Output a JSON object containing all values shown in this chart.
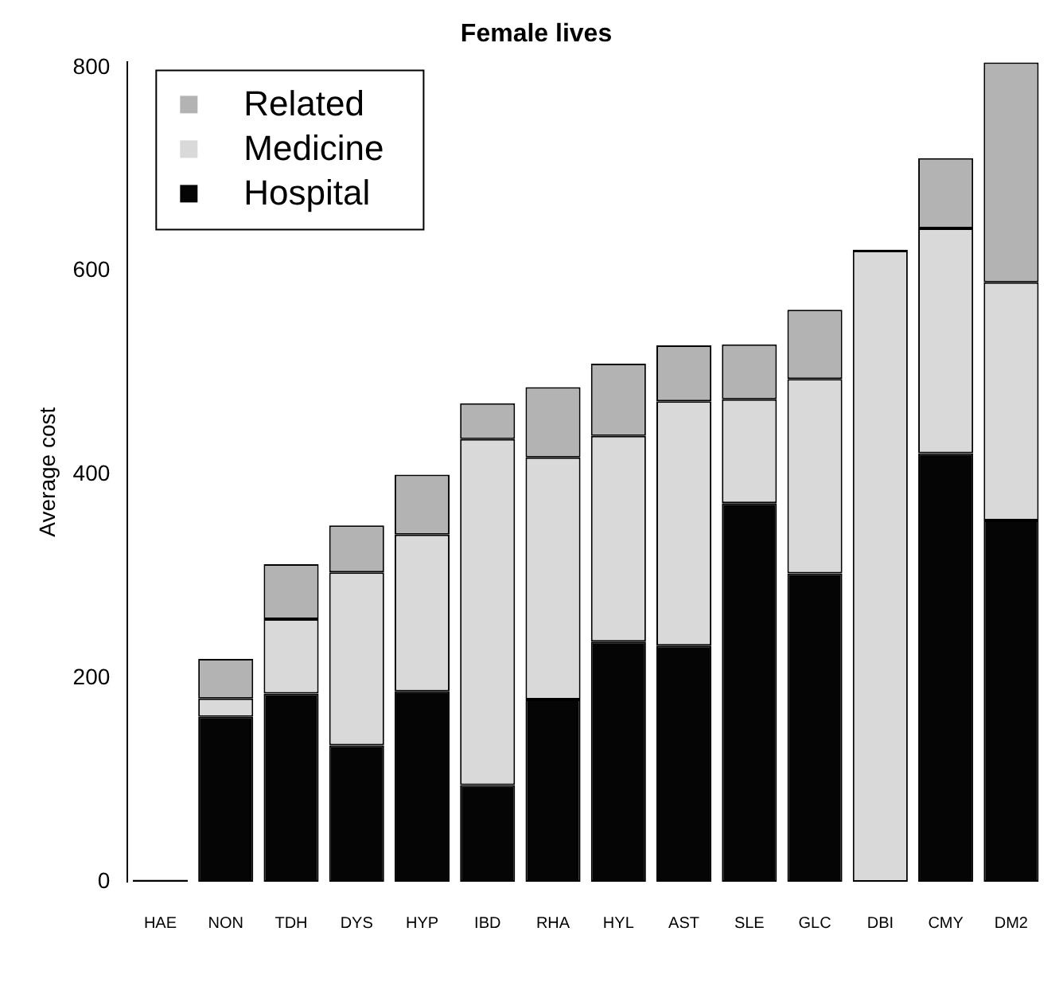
{
  "chart_data": {
    "type": "bar",
    "title": "Female lives",
    "ylabel": "Average cost",
    "stacked": true,
    "categories": [
      "HAE",
      "NON",
      "TDH",
      "DYS",
      "HYP",
      "IBD",
      "RHA",
      "HYL",
      "AST",
      "SLE",
      "GLC",
      "DBI",
      "CMY",
      "DM2"
    ],
    "series": [
      {
        "name": "Hospital",
        "color": "#050505",
        "values": [
          2,
          162,
          185,
          134,
          187,
          95,
          179,
          236,
          232,
          372,
          303,
          0,
          421,
          355
        ]
      },
      {
        "name": "Medicine",
        "color": "#d9d9d9",
        "values": [
          0,
          18,
          73,
          170,
          154,
          340,
          238,
          202,
          240,
          102,
          191,
          620,
          221,
          234
        ]
      },
      {
        "name": "Related",
        "color": "#b3b3b3",
        "values": [
          0,
          39,
          54,
          46,
          59,
          35,
          69,
          71,
          55,
          54,
          68,
          1,
          69,
          216
        ]
      }
    ],
    "ylim": [
      0,
      805
    ],
    "yticks": [
      0,
      200,
      400,
      600,
      800
    ],
    "grid": false,
    "legend": "top left"
  }
}
